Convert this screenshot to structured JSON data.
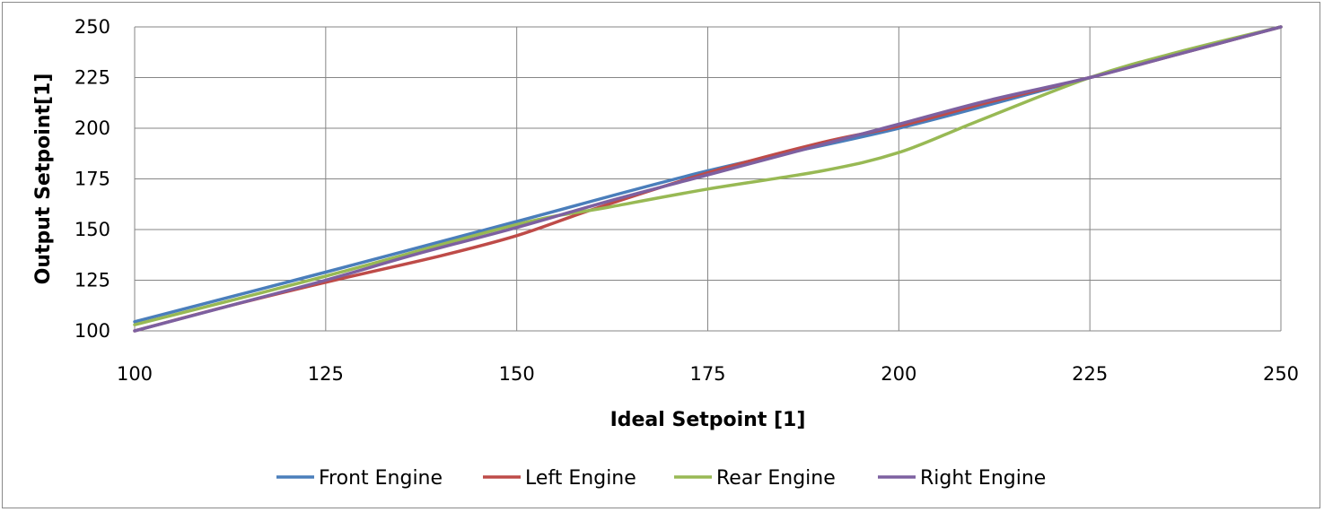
{
  "chart_data": {
    "type": "line",
    "xlabel": "Ideal Setpoint [1]",
    "ylabel": "Output Setpoint[1]",
    "xlim": [
      100,
      250
    ],
    "ylim": [
      100,
      250
    ],
    "xticks": [
      100,
      125,
      150,
      175,
      200,
      225,
      250
    ],
    "yticks": [
      100,
      125,
      150,
      175,
      200,
      225,
      250
    ],
    "grid": true,
    "legend_position": "bottom",
    "series": [
      {
        "name": "Front Engine",
        "color": "#4a7ebb",
        "x": [
          100,
          125,
          150,
          175,
          200,
          225,
          250
        ],
        "y": [
          104.5,
          129,
          154,
          179,
          200,
          225,
          250
        ]
      },
      {
        "name": "Left Engine",
        "color": "#be4b48",
        "x": [
          100,
          112,
          125,
          140,
          150,
          160,
          175,
          190,
          200,
          212,
          225,
          237,
          250
        ],
        "y": [
          100,
          112,
          124,
          137,
          147,
          160,
          178,
          193,
          201,
          213,
          225,
          237,
          250
        ]
      },
      {
        "name": "Rear Engine",
        "color": "#98b954",
        "x": [
          100,
          125,
          150,
          162,
          175,
          190,
          200,
          210,
          225,
          237,
          250
        ],
        "y": [
          103,
          127,
          152.5,
          161,
          170,
          179,
          188,
          203,
          225,
          238,
          250
        ]
      },
      {
        "name": "Right Engine",
        "color": "#7d60a0",
        "x": [
          100,
          112,
          125,
          137,
          150,
          162,
          175,
          187,
          200,
          212,
          225,
          237,
          250
        ],
        "y": [
          100,
          112,
          125,
          138,
          151,
          164,
          177,
          189,
          202,
          214,
          225,
          237,
          250
        ]
      }
    ]
  }
}
